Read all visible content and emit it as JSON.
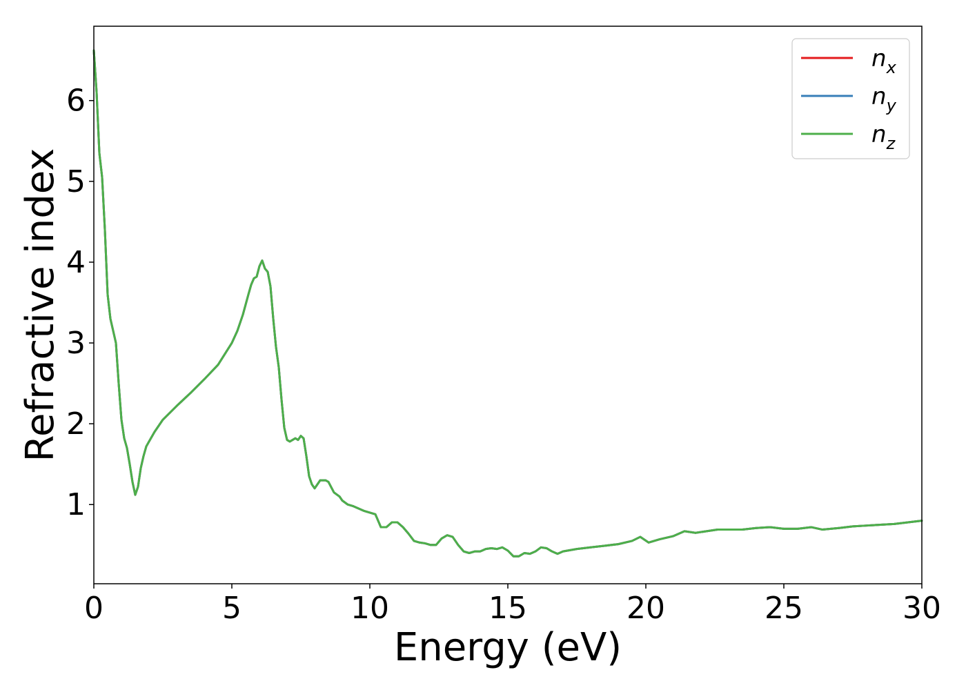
{
  "chart_data": {
    "type": "line",
    "xlabel": "Energy (eV)",
    "ylabel": "Refractive index",
    "xlim": [
      0,
      30
    ],
    "ylim": [
      0.02,
      6.92
    ],
    "xticks": [
      0,
      5,
      10,
      15,
      20,
      25,
      30
    ],
    "yticks": [
      1,
      2,
      3,
      4,
      5,
      6
    ],
    "grid": false,
    "legend_position": "top-right",
    "legend": [
      {
        "name": "n",
        "sub": "x",
        "color": "#e41a1c"
      },
      {
        "name": "n",
        "sub": "y",
        "color": "#377eb8"
      },
      {
        "name": "n",
        "sub": "z",
        "color": "#4daf4a"
      }
    ],
    "x": [
      0,
      0.1,
      0.2,
      0.3,
      0.4,
      0.5,
      0.6,
      0.7,
      0.8,
      0.9,
      1.0,
      1.1,
      1.2,
      1.3,
      1.4,
      1.5,
      1.6,
      1.7,
      1.8,
      1.9,
      2.0,
      2.2,
      2.5,
      3.0,
      3.5,
      4.0,
      4.5,
      5.0,
      5.2,
      5.4,
      5.6,
      5.7,
      5.8,
      5.9,
      6.0,
      6.1,
      6.2,
      6.3,
      6.4,
      6.5,
      6.6,
      6.7,
      6.8,
      6.9,
      7.0,
      7.1,
      7.2,
      7.3,
      7.4,
      7.5,
      7.6,
      7.7,
      7.8,
      7.9,
      8.0,
      8.1,
      8.2,
      8.3,
      8.4,
      8.5,
      8.7,
      8.9,
      9.0,
      9.2,
      9.4,
      9.6,
      9.8,
      10.0,
      10.2,
      10.4,
      10.6,
      10.8,
      11.0,
      11.2,
      11.4,
      11.6,
      11.8,
      12.0,
      12.2,
      12.4,
      12.6,
      12.8,
      13.0,
      13.2,
      13.4,
      13.6,
      13.8,
      14.0,
      14.2,
      14.4,
      14.6,
      14.8,
      15.0,
      15.2,
      15.4,
      15.6,
      15.8,
      16.0,
      16.2,
      16.4,
      16.6,
      16.8,
      17.0,
      17.5,
      18.0,
      18.5,
      19.0,
      19.5,
      19.8,
      20.1,
      20.5,
      21.0,
      21.4,
      21.8,
      22.2,
      22.6,
      23.0,
      23.5,
      24.0,
      24.5,
      25.0,
      25.5,
      26.0,
      26.4,
      27.0,
      27.5,
      28.0,
      28.5,
      29.0,
      29.5,
      30.0
    ],
    "y": [
      6.62,
      6.1,
      5.35,
      5.05,
      4.4,
      3.6,
      3.3,
      3.15,
      3.0,
      2.5,
      2.05,
      1.82,
      1.7,
      1.5,
      1.28,
      1.12,
      1.22,
      1.45,
      1.6,
      1.72,
      1.78,
      1.9,
      2.05,
      2.22,
      2.38,
      2.55,
      2.73,
      3.0,
      3.15,
      3.35,
      3.6,
      3.72,
      3.8,
      3.82,
      3.95,
      4.02,
      3.92,
      3.88,
      3.7,
      3.3,
      2.95,
      2.7,
      2.3,
      1.95,
      1.8,
      1.78,
      1.8,
      1.82,
      1.8,
      1.85,
      1.82,
      1.6,
      1.35,
      1.25,
      1.2,
      1.25,
      1.3,
      1.3,
      1.3,
      1.28,
      1.15,
      1.1,
      1.05,
      1.0,
      0.98,
      0.95,
      0.92,
      0.9,
      0.88,
      0.72,
      0.72,
      0.78,
      0.78,
      0.72,
      0.64,
      0.55,
      0.53,
      0.52,
      0.5,
      0.5,
      0.58,
      0.62,
      0.6,
      0.5,
      0.42,
      0.4,
      0.42,
      0.42,
      0.45,
      0.46,
      0.45,
      0.47,
      0.43,
      0.36,
      0.36,
      0.4,
      0.39,
      0.42,
      0.47,
      0.46,
      0.42,
      0.39,
      0.42,
      0.45,
      0.47,
      0.49,
      0.51,
      0.55,
      0.6,
      0.53,
      0.57,
      0.61,
      0.67,
      0.65,
      0.67,
      0.69,
      0.69,
      0.69,
      0.71,
      0.72,
      0.7,
      0.7,
      0.72,
      0.69,
      0.71,
      0.73,
      0.74,
      0.75,
      0.76,
      0.78,
      0.8
    ]
  }
}
